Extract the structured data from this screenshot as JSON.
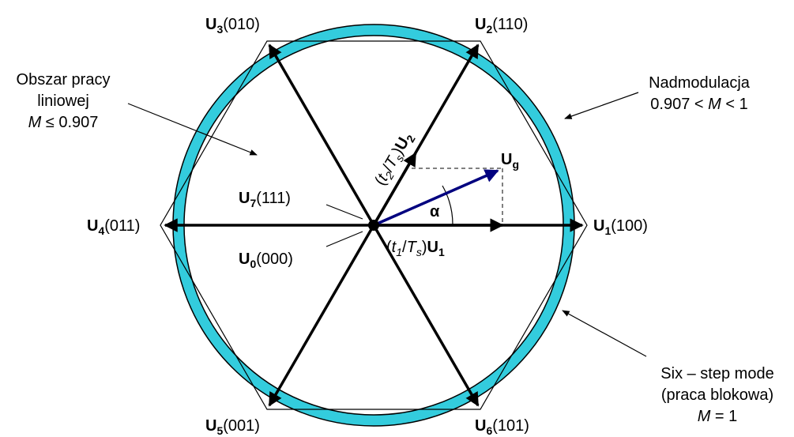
{
  "vectors": [
    {
      "id": "u1",
      "letter": "U",
      "sub": "1",
      "code": "(100)"
    },
    {
      "id": "u2",
      "letter": "U",
      "sub": "2",
      "code": "(110)"
    },
    {
      "id": "u3",
      "letter": "U",
      "sub": "3",
      "code": "(010)"
    },
    {
      "id": "u4",
      "letter": "U",
      "sub": "4",
      "code": "(011)"
    },
    {
      "id": "u5",
      "letter": "U",
      "sub": "5",
      "code": "(001)"
    },
    {
      "id": "u6",
      "letter": "U",
      "sub": "6",
      "code": "(101)"
    },
    {
      "id": "u7",
      "letter": "U",
      "sub": "7",
      "code": "(111)"
    },
    {
      "id": "u0",
      "letter": "U",
      "sub": "0",
      "code": "(000)"
    }
  ],
  "linear_region": {
    "line1": "Obszar pracy",
    "line2": "liniowej",
    "m_var": "M",
    "m_condition": " ≤ 0.907"
  },
  "overmodulation": {
    "line1": "Nadmodulacja",
    "pre": "0.907 < ",
    "m_var": "M",
    "post": " < 1"
  },
  "six_step": {
    "line1": "Six – step mode",
    "line2": "(praca blokowa)",
    "m_var": "M",
    "post": " = 1"
  },
  "reference_vector": {
    "letter": "U",
    "sub": "g",
    "color": "#00007f"
  },
  "angle_symbol": "α",
  "component_labels": {
    "t1_open": "(",
    "t1": "t",
    "t1_sub": "1",
    "t1_slash": "/",
    "ts1": "T",
    "ts1_sub": "s",
    "t1_close": ")",
    "u1": "U",
    "u1_sub": "1",
    "t2_open": "(",
    "t2": "t",
    "t2_sub": "2",
    "t2_slash": "/",
    "ts2": "T",
    "ts2_sub": "s",
    "t2_close": ")",
    "u2": "U",
    "u2_sub": "2"
  },
  "colors": {
    "ring": "#33ccdd",
    "reference": "#00007f",
    "lines": "#000000"
  }
}
